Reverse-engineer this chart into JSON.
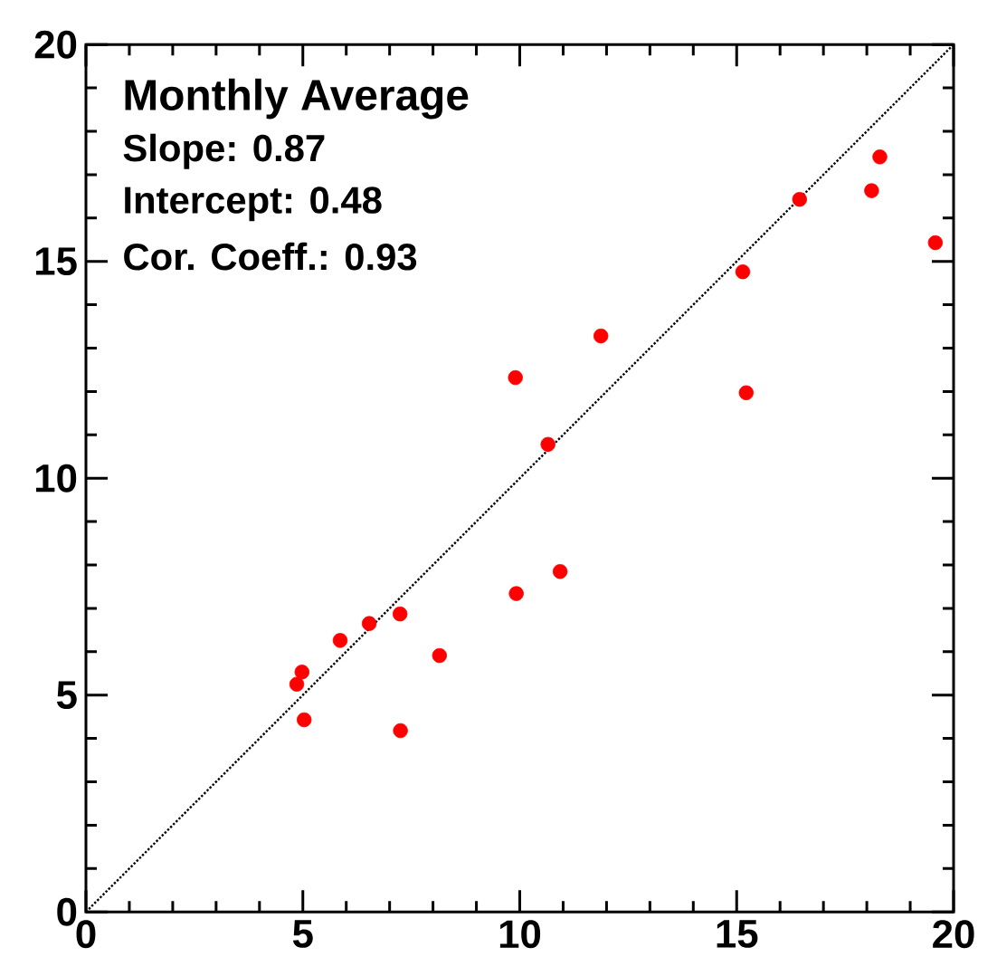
{
  "chart_data": {
    "type": "scatter",
    "xlim": [
      0,
      20
    ],
    "ylim": [
      0,
      20
    ],
    "xticks": [
      0,
      5,
      10,
      15,
      20
    ],
    "yticks": [
      0,
      5,
      10,
      15,
      20
    ],
    "grid": false,
    "annotations": [
      "Monthly Average",
      "Slope: 0.87",
      "Intercept: 0.48",
      "Cor. Coeff.: 0.93"
    ],
    "series": [
      {
        "marker": "circle",
        "color": "#ff0000",
        "x": [
          18.3,
          18.11,
          16.45,
          19.58,
          15.14,
          11.87,
          9.9,
          15.22,
          10.65,
          4.98,
          4.86,
          5.03,
          5.86,
          6.53,
          7.24,
          7.25,
          8.15,
          9.92,
          10.93
        ],
        "values": [
          17.41,
          16.63,
          16.43,
          15.43,
          14.76,
          13.28,
          12.32,
          11.97,
          10.78,
          5.53,
          5.25,
          4.43,
          6.26,
          6.65,
          6.87,
          4.18,
          5.91,
          7.34,
          7.85
        ]
      },
      {
        "type": "line",
        "marker": "none",
        "color": "#000000",
        "line_style": "dotted",
        "x": [
          0,
          20
        ],
        "values": [
          0,
          20
        ]
      }
    ]
  }
}
